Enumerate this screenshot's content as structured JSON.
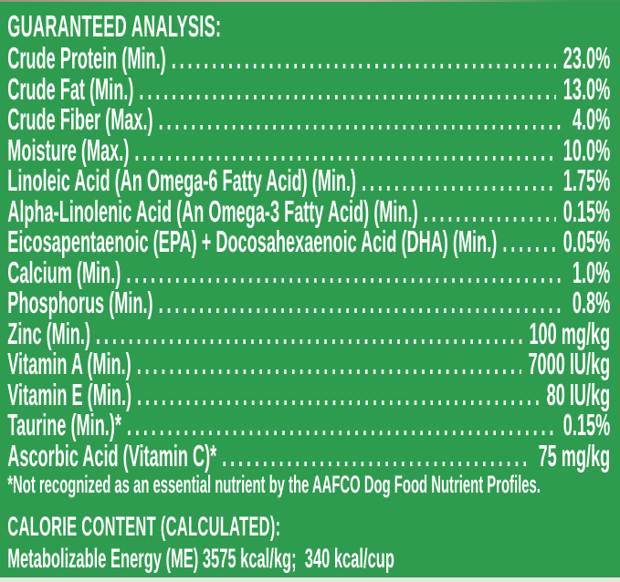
{
  "panel": {
    "background_color": "#2E9C4E",
    "text_color": "#FFFFFF"
  },
  "analysis": {
    "heading": "GUARANTEED ANALYSIS:",
    "rows": [
      {
        "label": "Crude Protein (Min.)",
        "value": "23.0%"
      },
      {
        "label": "Crude Fat (Min.)",
        "value": "13.0%"
      },
      {
        "label": "Crude Fiber (Max.)",
        "value": "4.0%"
      },
      {
        "label": "Moisture (Max.)",
        "value": "10.0%"
      },
      {
        "label": "Linoleic Acid (An Omega-6 Fatty Acid) (Min.)",
        "value": "1.75%"
      },
      {
        "label": "Alpha-Linolenic Acid (An Omega-3 Fatty Acid) (Min.)",
        "value": "0.15%"
      },
      {
        "label": "Eicosapentaenoic (EPA) + Docosahexaenoic Acid (DHA) (Min.)",
        "value": "0.05%"
      },
      {
        "label": "Calcium (Min.)",
        "value": "1.0%"
      },
      {
        "label": "Phosphorus (Min.)",
        "value": "0.8%"
      },
      {
        "label": "Zinc (Min.)",
        "value": "100 mg/kg"
      },
      {
        "label": "Vitamin A (Min.)",
        "value": "7000 IU/kg"
      },
      {
        "label": "Vitamin E (Min.)",
        "value": "80 IU/kg"
      },
      {
        "label": "Taurine (Min.)*",
        "value": "0.15%"
      },
      {
        "label": "Ascorbic Acid (Vitamin C)*",
        "value": "75 mg/kg"
      }
    ],
    "footnote": "*Not recognized as an essential nutrient by the AAFCO Dog Food Nutrient Profiles."
  },
  "calorie": {
    "heading": "CALORIE CONTENT (CALCULATED):",
    "line": "Metabolizable Energy (ME) 3575 kcal/kg;  340 kcal/cup"
  }
}
